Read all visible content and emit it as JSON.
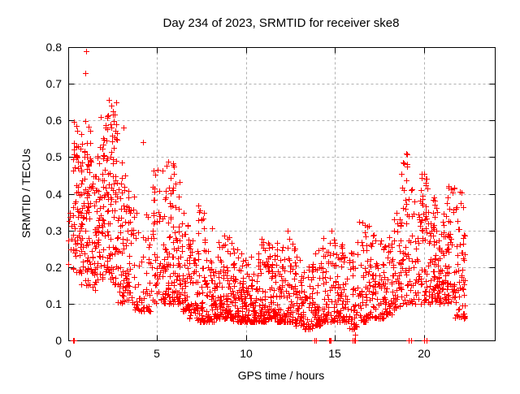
{
  "chart_data": {
    "type": "scatter",
    "title": "Day 234 of 2023, SRMTID for receiver ske8",
    "xlabel": "GPS time / hours",
    "ylabel": "SRMTID / TECUs",
    "xlim": [
      0,
      24
    ],
    "ylim": [
      0,
      0.8
    ],
    "x_ticks": [
      0,
      5,
      10,
      15,
      20
    ],
    "y_ticks": [
      0,
      0.1,
      0.2,
      0.3,
      0.4,
      0.5,
      0.6,
      0.7,
      0.8
    ],
    "grid": true,
    "grid_style": "dashed",
    "legend": "none",
    "marker": "plus",
    "marker_color": "#ff0000",
    "grid_color": "#b0b0b0",
    "axis_color": "#000000",
    "background_color": "#ffffff",
    "n_points_approx": 2250,
    "bins_format": "Each bin = [t_start_hours, t_end_hours, n_points, value_min_TECU, value_max_TECU, skew_exponent]; points cluster toward value_min as skew grows",
    "bins": [
      [
        0.0,
        0.25,
        8,
        0.2,
        0.37,
        1.2
      ],
      [
        0.25,
        0.75,
        70,
        0.18,
        0.62,
        1.35
      ],
      [
        0.75,
        1.25,
        70,
        0.15,
        0.6,
        1.4
      ],
      [
        1.25,
        1.75,
        60,
        0.13,
        0.52,
        1.4
      ],
      [
        1.75,
        2.25,
        65,
        0.15,
        0.62,
        1.35
      ],
      [
        2.25,
        2.75,
        65,
        0.15,
        0.66,
        1.4
      ],
      [
        2.75,
        3.25,
        55,
        0.1,
        0.5,
        1.5
      ],
      [
        3.25,
        3.75,
        42,
        0.1,
        0.42,
        1.5
      ],
      [
        3.75,
        4.25,
        26,
        0.08,
        0.35,
        1.6
      ],
      [
        4.25,
        4.75,
        30,
        0.08,
        0.36,
        1.6
      ],
      [
        4.75,
        5.25,
        45,
        0.1,
        0.47,
        1.5
      ],
      [
        5.25,
        5.75,
        55,
        0.1,
        0.49,
        1.5
      ],
      [
        5.75,
        6.25,
        60,
        0.1,
        0.49,
        1.5
      ],
      [
        6.25,
        6.75,
        48,
        0.08,
        0.36,
        1.7
      ],
      [
        6.75,
        7.25,
        48,
        0.06,
        0.28,
        1.9
      ],
      [
        7.25,
        7.75,
        52,
        0.05,
        0.37,
        2.0
      ],
      [
        7.75,
        8.25,
        52,
        0.05,
        0.33,
        2.0
      ],
      [
        8.25,
        8.75,
        52,
        0.06,
        0.27,
        2.0
      ],
      [
        8.75,
        9.25,
        52,
        0.06,
        0.3,
        2.1
      ],
      [
        9.25,
        9.75,
        55,
        0.05,
        0.25,
        2.0
      ],
      [
        9.75,
        10.25,
        55,
        0.05,
        0.22,
        2.0
      ],
      [
        10.25,
        10.75,
        55,
        0.05,
        0.24,
        2.0
      ],
      [
        10.75,
        11.25,
        55,
        0.05,
        0.28,
        2.1
      ],
      [
        11.25,
        11.75,
        55,
        0.06,
        0.3,
        2.1
      ],
      [
        11.75,
        12.25,
        55,
        0.05,
        0.28,
        2.1
      ],
      [
        12.25,
        12.75,
        50,
        0.05,
        0.3,
        2.1
      ],
      [
        12.75,
        13.25,
        50,
        0.04,
        0.25,
        2.1
      ],
      [
        13.25,
        13.75,
        45,
        0.03,
        0.22,
        2.0
      ],
      [
        13.75,
        14.25,
        45,
        0.04,
        0.25,
        2.0
      ],
      [
        14.25,
        14.75,
        45,
        0.05,
        0.28,
        2.0
      ],
      [
        14.75,
        15.25,
        45,
        0.05,
        0.3,
        2.0
      ],
      [
        15.25,
        15.75,
        45,
        0.05,
        0.3,
        2.0
      ],
      [
        15.75,
        16.25,
        40,
        0.03,
        0.25,
        1.9
      ],
      [
        16.25,
        16.75,
        46,
        0.05,
        0.33,
        2.0
      ],
      [
        16.75,
        17.25,
        46,
        0.06,
        0.32,
        2.0
      ],
      [
        17.25,
        17.75,
        46,
        0.06,
        0.3,
        1.9
      ],
      [
        17.75,
        18.25,
        46,
        0.07,
        0.32,
        1.9
      ],
      [
        18.25,
        18.75,
        46,
        0.08,
        0.35,
        1.8
      ],
      [
        18.75,
        19.25,
        45,
        0.1,
        0.51,
        1.7
      ],
      [
        19.25,
        19.75,
        35,
        0.1,
        0.42,
        1.7
      ],
      [
        19.75,
        20.25,
        50,
        0.1,
        0.46,
        1.6
      ],
      [
        20.25,
        20.75,
        58,
        0.1,
        0.4,
        1.5
      ],
      [
        20.75,
        21.25,
        60,
        0.1,
        0.35,
        1.5
      ],
      [
        21.25,
        21.75,
        55,
        0.1,
        0.42,
        1.5
      ],
      [
        21.75,
        22.35,
        55,
        0.06,
        0.41,
        1.5
      ]
    ],
    "outliers": [
      [
        0.97,
        0.73
      ],
      [
        1.0,
        0.79
      ],
      [
        2.3,
        0.655
      ],
      [
        2.4,
        0.64
      ],
      [
        2.5,
        0.615
      ],
      [
        3.1,
        0.58
      ],
      [
        4.2,
        0.54
      ],
      [
        19.0,
        0.51
      ],
      [
        19.05,
        0.475
      ],
      [
        20.0,
        0.455
      ],
      [
        20.1,
        0.43
      ],
      [
        16.15,
        0.015
      ],
      [
        16.18,
        0.04
      ],
      [
        16.2,
        0.07
      ],
      [
        21.4,
        0.42
      ],
      [
        22.05,
        0.405
      ]
    ],
    "zero_value_times": [
      0.27,
      0.3,
      0.33,
      13.87,
      13.93,
      14.68,
      14.73,
      14.78,
      16.02,
      16.07,
      16.12,
      19.17,
      19.3,
      20.03,
      20.17
    ],
    "seed": 20230234
  }
}
